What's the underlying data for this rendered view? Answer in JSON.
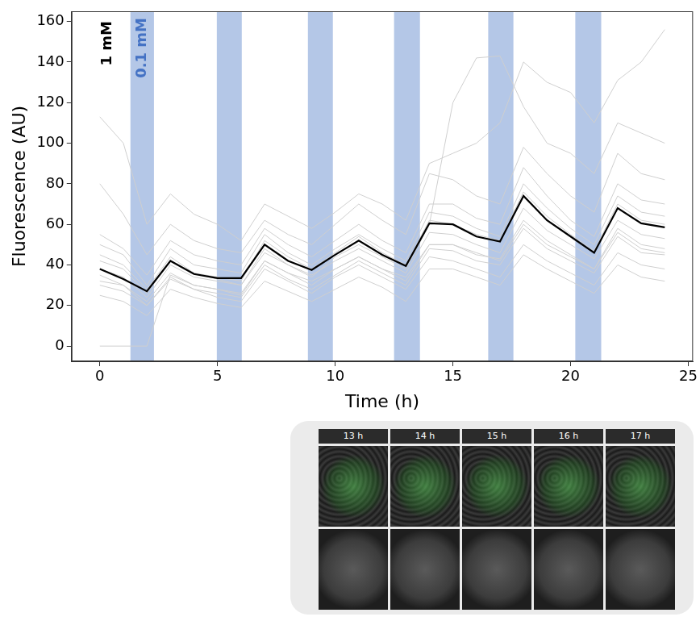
{
  "chart_data": {
    "type": "line",
    "x_label": "Time (h)",
    "y_label": "Fluorescence (AU)",
    "xlim": [
      -1.2,
      25.2
    ],
    "xticks": [
      0,
      5,
      10,
      15,
      20,
      25
    ],
    "ylim": [
      -7.5,
      165
    ],
    "yticks": [
      0,
      20,
      40,
      60,
      80,
      100,
      120,
      140,
      160
    ],
    "grid": false,
    "baseline_label": {
      "text": "1 mM",
      "color": "#000000"
    },
    "bands": {
      "color": "#b4c7e7",
      "label": "0.1 mM",
      "label_color": "#4472c4",
      "ranges": [
        [
          1.3,
          2.3
        ],
        [
          4.97,
          6.03
        ],
        [
          8.84,
          9.9
        ],
        [
          12.5,
          13.6
        ],
        [
          16.5,
          17.57
        ],
        [
          20.2,
          21.3
        ]
      ]
    },
    "x": [
      0,
      1,
      2,
      3,
      4,
      5,
      6,
      7,
      8,
      9,
      10,
      11,
      12,
      13,
      14,
      15,
      16,
      17,
      18,
      19,
      20,
      21,
      22,
      23,
      24
    ],
    "series": [
      {
        "color": "#cfcfcf",
        "values": [
          50,
          45,
          30,
          48,
          40,
          38,
          36,
          55,
          46,
          40,
          48,
          55,
          48,
          42,
          66,
          64,
          58,
          54,
          80,
          68,
          58,
          50,
          74,
          66,
          64
        ]
      },
      {
        "color": "#cfcfcf",
        "values": [
          30,
          27,
          20,
          33,
          28,
          26,
          24,
          40,
          33,
          28,
          35,
          42,
          36,
          30,
          48,
          47,
          42,
          40,
          58,
          48,
          42,
          36,
          54,
          46,
          45
        ]
      },
      {
        "color": "#cfcfcf",
        "values": [
          80,
          65,
          45,
          60,
          52,
          48,
          46,
          62,
          55,
          50,
          60,
          70,
          62,
          55,
          85,
          82,
          74,
          70,
          98,
          85,
          74,
          66,
          95,
          85,
          82
        ]
      },
      {
        "color": "#cfcfcf",
        "values": [
          0,
          0,
          0,
          35,
          30,
          28,
          25,
          42,
          36,
          30,
          38,
          44,
          38,
          32,
          50,
          50,
          45,
          43,
          62,
          52,
          45,
          38,
          58,
          50,
          48
        ]
      },
      {
        "color": "#cfcfcf",
        "values": [
          113,
          100,
          60,
          75,
          65,
          60,
          52,
          70,
          64,
          58,
          66,
          75,
          70,
          62,
          90,
          95,
          100,
          110,
          140,
          130,
          125,
          110,
          131,
          140,
          156
        ]
      },
      {
        "color": "#cfcfcf",
        "values": [
          45,
          40,
          28,
          44,
          36,
          34,
          32,
          52,
          44,
          38,
          46,
          54,
          46,
          40,
          62,
          60,
          55,
          52,
          76,
          64,
          55,
          47,
          70,
          62,
          60
        ]
      },
      {
        "color": "#cfcfcf",
        "values": [
          25,
          22,
          15,
          28,
          24,
          21,
          19,
          32,
          27,
          22,
          28,
          34,
          29,
          22,
          38,
          38,
          34,
          30,
          45,
          38,
          32,
          26,
          40,
          34,
          32
        ]
      },
      {
        "color": "#cfcfcf",
        "values": [
          38,
          34,
          24,
          40,
          34,
          32,
          30,
          46,
          40,
          35,
          42,
          48,
          42,
          36,
          56,
          55,
          50,
          46,
          68,
          57,
          50,
          43,
          62,
          55,
          53
        ]
      },
      {
        "color": "#cfcfcf",
        "values": [
          55,
          48,
          35,
          52,
          45,
          42,
          40,
          58,
          50,
          44,
          52,
          60,
          52,
          46,
          70,
          70,
          63,
          60,
          88,
          74,
          62,
          54,
          80,
          72,
          70
        ]
      },
      {
        "color": "#cfcfcf",
        "values": [
          32,
          30,
          22,
          36,
          30,
          28,
          26,
          42,
          36,
          32,
          38,
          44,
          38,
          34,
          50,
          50,
          46,
          42,
          60,
          50,
          44,
          38,
          56,
          48,
          46
        ]
      },
      {
        "color": "#cfcfcf",
        "values": [
          42,
          38,
          26,
          42,
          36,
          33,
          30,
          48,
          40,
          34,
          44,
          50,
          44,
          38,
          60,
          120,
          142,
          143,
          118,
          100,
          95,
          85,
          110,
          105,
          100
        ]
      },
      {
        "color": "#cfcfcf",
        "values": [
          35,
          30,
          20,
          34,
          28,
          24,
          22,
          38,
          32,
          26,
          34,
          40,
          34,
          28,
          44,
          42,
          38,
          34,
          50,
          42,
          36,
          30,
          46,
          40,
          38
        ]
      },
      {
        "color": "#000000",
        "values": [
          38,
          33,
          27,
          42,
          35.5,
          33.5,
          33.5,
          50,
          42,
          37.5,
          45,
          52,
          45,
          39.5,
          60.5,
          60,
          54,
          51.5,
          74,
          62,
          54,
          46,
          68,
          60.5,
          58.5
        ]
      }
    ],
    "inset": {
      "frames": [
        "13 h",
        "14 h",
        "15 h",
        "16 h",
        "17 h"
      ]
    }
  }
}
